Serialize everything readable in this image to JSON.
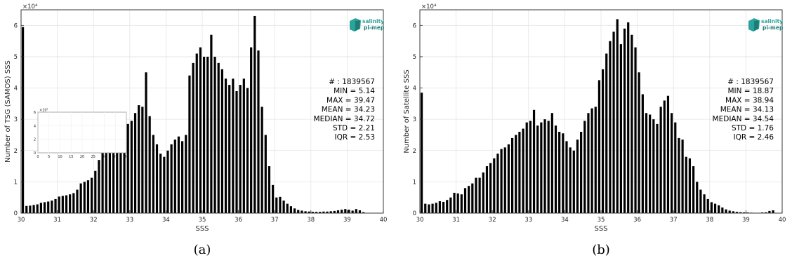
{
  "chart_data": [
    {
      "type": "bar",
      "panel_caption": "(a)",
      "xlabel": "SSS",
      "ylabel": "Number of TSG (SAMOS) SSS",
      "exponent_label": "×10⁴",
      "xlim": [
        30,
        40
      ],
      "ylim": [
        0,
        65000
      ],
      "xticks": [
        "30",
        "31",
        "32",
        "33",
        "34",
        "35",
        "36",
        "37",
        "38",
        "39",
        "40"
      ],
      "yticks": [
        "0",
        "1",
        "2",
        "3",
        "4",
        "5",
        "6"
      ],
      "grid": true,
      "bin_start": 30.0,
      "bin_width": 0.1,
      "values": [
        59500,
        2300,
        2400,
        2600,
        2800,
        3300,
        3500,
        3700,
        4000,
        4500,
        5300,
        5500,
        5700,
        6000,
        6400,
        7500,
        9500,
        10000,
        10500,
        11300,
        13500,
        17000,
        21000,
        23000,
        24000,
        26000,
        28000,
        30000,
        31500,
        28500,
        29500,
        32000,
        34500,
        34000,
        45000,
        31000,
        25000,
        22000,
        19000,
        18000,
        20000,
        22000,
        23500,
        24500,
        23000,
        25000,
        44000,
        48000,
        51000,
        53000,
        50000,
        50000,
        57000,
        50000,
        48000,
        46000,
        43000,
        41000,
        43000,
        39000,
        41000,
        43000,
        40000,
        53000,
        63000,
        52000,
        34000,
        25000,
        15000,
        9000,
        5000,
        5200,
        4000,
        3000,
        2200,
        1500,
        1000,
        800,
        600,
        500,
        400,
        400,
        400,
        500,
        500,
        600,
        700,
        900,
        1100,
        1300,
        1100,
        800,
        1300,
        900,
        300
      ],
      "inset": {
        "exponent_label": "×10⁴",
        "xlim": [
          0,
          40
        ],
        "ylim": [
          0,
          6
        ],
        "xticks": [
          "0",
          "5",
          "10",
          "15",
          "20",
          "25",
          "30",
          "35",
          "40"
        ],
        "yticks": [
          "0",
          "2",
          "4",
          "6"
        ]
      },
      "stats": [
        "# : 1839567",
        "MIN = 5.14",
        "MAX =  39.47",
        "MEAN = 34.23",
        "MEDIAN = 34.72",
        "STD = 2.21",
        "IQR = 2.53"
      ],
      "logo": {
        "line1": "salinity",
        "line2": "pi-mep",
        "color": "#2aa39a"
      }
    },
    {
      "type": "bar",
      "panel_caption": "(b)",
      "xlabel": "SSS",
      "ylabel": "Number of Satellite SSS",
      "exponent_label": "×10⁴",
      "xlim": [
        30,
        40
      ],
      "ylim": [
        0,
        65000
      ],
      "xticks": [
        "30",
        "31",
        "32",
        "33",
        "34",
        "35",
        "36",
        "37",
        "38",
        "39",
        "40"
      ],
      "yticks": [
        "0",
        "1",
        "2",
        "3",
        "4",
        "5",
        "6"
      ],
      "grid": true,
      "bin_start": 30.0,
      "bin_width": 0.1,
      "values": [
        38500,
        3000,
        2800,
        3000,
        3300,
        3800,
        3600,
        4200,
        5000,
        6500,
        6300,
        6000,
        8000,
        8700,
        9500,
        11300,
        11300,
        13000,
        15000,
        16000,
        17500,
        19000,
        20500,
        21000,
        22000,
        24000,
        25000,
        26000,
        27000,
        29000,
        29500,
        33000,
        28000,
        29000,
        30000,
        29500,
        32000,
        28000,
        26000,
        25500,
        23000,
        21000,
        20000,
        23500,
        26000,
        29500,
        32000,
        33500,
        34000,
        42500,
        46000,
        51000,
        55000,
        58000,
        62000,
        54000,
        59000,
        61000,
        57000,
        53000,
        45000,
        38000,
        32000,
        31500,
        30000,
        28500,
        34000,
        36000,
        37500,
        32000,
        29000,
        24000,
        23500,
        18000,
        17500,
        15000,
        10000,
        7500,
        6000,
        4500,
        3500,
        3000,
        2500,
        1800,
        1200,
        800,
        600,
        400,
        300,
        250,
        200,
        150,
        100,
        100,
        200,
        250,
        700,
        900
      ],
      "stats": [
        "# : 1839567",
        "MIN = 18.87",
        "MAX =  38.94",
        "MEAN = 34.13",
        "MEDIAN = 34.54",
        "STD = 1.76",
        "IQR = 2.46"
      ],
      "logo": {
        "line1": "salinity",
        "line2": "pi-mep",
        "color": "#2aa39a"
      }
    }
  ]
}
